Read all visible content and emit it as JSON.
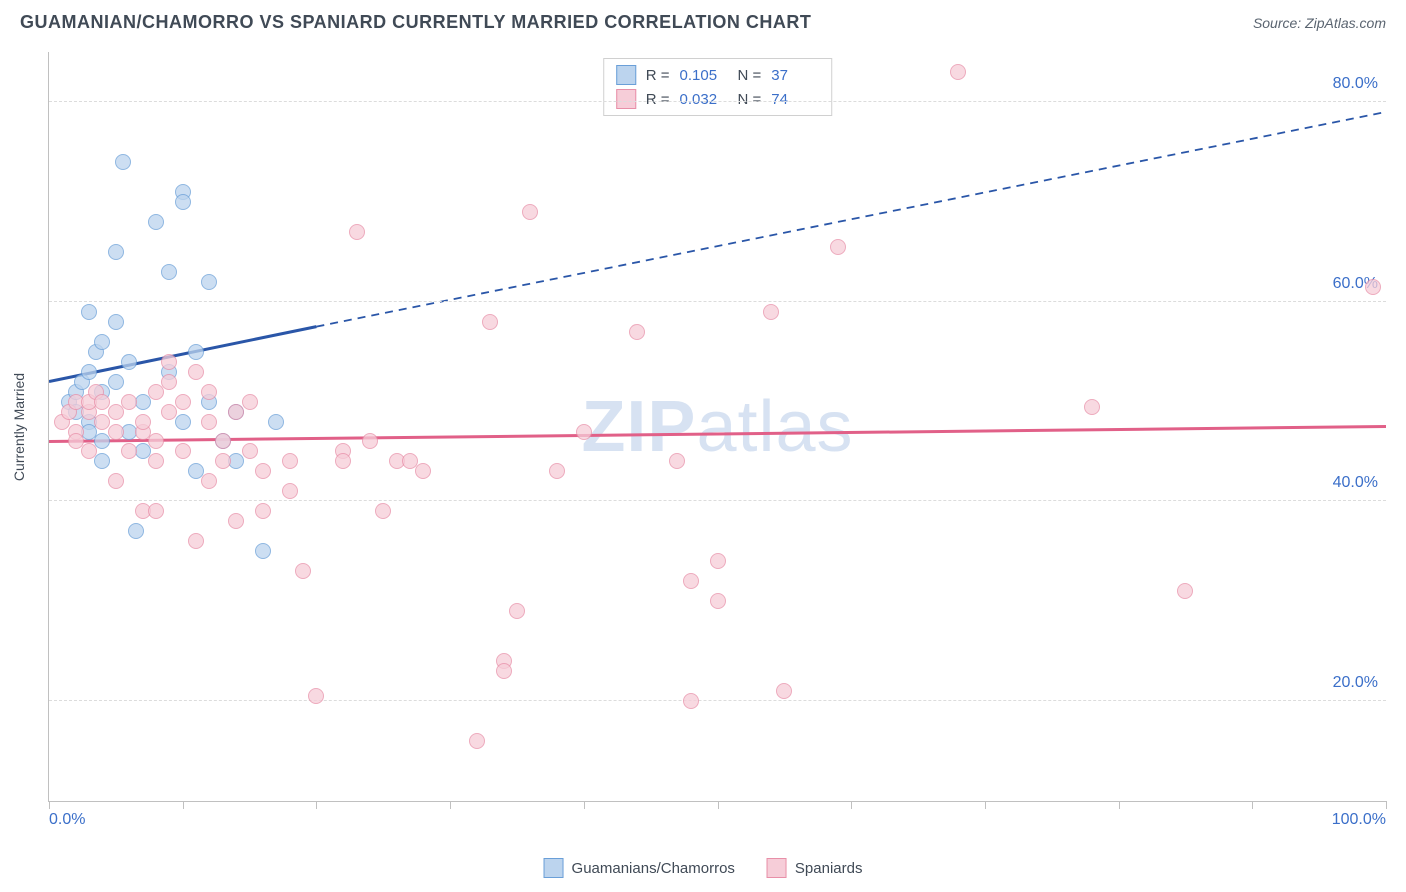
{
  "title": "GUAMANIAN/CHAMORRO VS SPANIARD CURRENTLY MARRIED CORRELATION CHART",
  "source": "Source: ZipAtlas.com",
  "y_axis_label": "Currently Married",
  "watermark_a": "ZIP",
  "watermark_b": "atlas",
  "chart": {
    "type": "scatter",
    "xlim": [
      0,
      100
    ],
    "ylim": [
      10,
      85
    ],
    "x_ticks": [
      0,
      10,
      20,
      30,
      40,
      50,
      60,
      70,
      80,
      90,
      100
    ],
    "x_tick_labels": {
      "0": "0.0%",
      "100": "100.0%"
    },
    "y_gridlines": [
      20,
      40,
      60,
      80
    ],
    "y_tick_labels": {
      "20": "20.0%",
      "40": "40.0%",
      "60": "60.0%",
      "80": "80.0%"
    },
    "background_color": "#ffffff",
    "grid_color": "#dcdcdc",
    "axis_color": "#c0c0c0",
    "tick_label_color": "#3b6fc9",
    "tick_label_fontsize": 16,
    "point_radius": 8,
    "point_opacity": 0.75,
    "series": [
      {
        "name": "Guamanians/Chamorros",
        "fill_color": "#bcd4ee",
        "stroke_color": "#6a9fd8",
        "trend_color": "#2a56a8",
        "trend_width": 3,
        "R": "0.105",
        "N": "37",
        "trend": {
          "x0": 0,
          "y0": 52,
          "x_solid_end": 20,
          "y_solid_end": 57.5,
          "x1": 100,
          "y1": 79
        },
        "points": [
          [
            1.5,
            50
          ],
          [
            2,
            51
          ],
          [
            2,
            49
          ],
          [
            2.5,
            52
          ],
          [
            3,
            53
          ],
          [
            3,
            48
          ],
          [
            3,
            59
          ],
          [
            3.5,
            55
          ],
          [
            4,
            56
          ],
          [
            4,
            51
          ],
          [
            4,
            44
          ],
          [
            5,
            52
          ],
          [
            5,
            58
          ],
          [
            5,
            65
          ],
          [
            5.5,
            74
          ],
          [
            6,
            47
          ],
          [
            6.5,
            37
          ],
          [
            7,
            45
          ],
          [
            7,
            50
          ],
          [
            8,
            68
          ],
          [
            9,
            63
          ],
          [
            9,
            53
          ],
          [
            10,
            71
          ],
          [
            10,
            70
          ],
          [
            10,
            48
          ],
          [
            11,
            43
          ],
          [
            11,
            55
          ],
          [
            12,
            62
          ],
          [
            12,
            50
          ],
          [
            13,
            46
          ],
          [
            14,
            49
          ],
          [
            14,
            44
          ],
          [
            16,
            35
          ],
          [
            17,
            48
          ],
          [
            4,
            46
          ],
          [
            6,
            54
          ],
          [
            3,
            47
          ]
        ]
      },
      {
        "name": "Spaniards",
        "fill_color": "#f6cdd8",
        "stroke_color": "#e88fa8",
        "trend_color": "#e16088",
        "trend_width": 3,
        "R": "0.032",
        "N": "74",
        "trend": {
          "x0": 0,
          "y0": 46,
          "x_solid_end": 100,
          "y_solid_end": 47.5,
          "x1": 100,
          "y1": 47.5
        },
        "points": [
          [
            1,
            48
          ],
          [
            1.5,
            49
          ],
          [
            2,
            50
          ],
          [
            2,
            47
          ],
          [
            2,
            46
          ],
          [
            3,
            49
          ],
          [
            3,
            50
          ],
          [
            3,
            45
          ],
          [
            3.5,
            51
          ],
          [
            4,
            48
          ],
          [
            4,
            50
          ],
          [
            5,
            49
          ],
          [
            5,
            47
          ],
          [
            5,
            42
          ],
          [
            6,
            50
          ],
          [
            6,
            45
          ],
          [
            7,
            47
          ],
          [
            7,
            48
          ],
          [
            7,
            39
          ],
          [
            8,
            51
          ],
          [
            8,
            46
          ],
          [
            8,
            44
          ],
          [
            8,
            39
          ],
          [
            9,
            52
          ],
          [
            9,
            49
          ],
          [
            9,
            54
          ],
          [
            10,
            45
          ],
          [
            10,
            50
          ],
          [
            11,
            53
          ],
          [
            11,
            36
          ],
          [
            12,
            42
          ],
          [
            12,
            51
          ],
          [
            12,
            48
          ],
          [
            13,
            44
          ],
          [
            13,
            46
          ],
          [
            14,
            49
          ],
          [
            14,
            38
          ],
          [
            15,
            50
          ],
          [
            15,
            45
          ],
          [
            16,
            43
          ],
          [
            16,
            39
          ],
          [
            18,
            44
          ],
          [
            18,
            41
          ],
          [
            19,
            33
          ],
          [
            20,
            20.5
          ],
          [
            22,
            45
          ],
          [
            22,
            44
          ],
          [
            23,
            67
          ],
          [
            24,
            46
          ],
          [
            25,
            39
          ],
          [
            26,
            44
          ],
          [
            27,
            44
          ],
          [
            28,
            43
          ],
          [
            32,
            16
          ],
          [
            33,
            58
          ],
          [
            34,
            24
          ],
          [
            34,
            23
          ],
          [
            35,
            29
          ],
          [
            36,
            69
          ],
          [
            38,
            43
          ],
          [
            40,
            47
          ],
          [
            44,
            57
          ],
          [
            47,
            44
          ],
          [
            48,
            32
          ],
          [
            48,
            20
          ],
          [
            50,
            34
          ],
          [
            50,
            30
          ],
          [
            54,
            59
          ],
          [
            55,
            21
          ],
          [
            59,
            65.5
          ],
          [
            68,
            83
          ],
          [
            78,
            49.5
          ],
          [
            85,
            31
          ],
          [
            99,
            61.5
          ]
        ]
      }
    ]
  },
  "stats_labels": {
    "R": "R  =",
    "N": "N  ="
  },
  "legend_labels": [
    "Guamanians/Chamorros",
    "Spaniards"
  ]
}
